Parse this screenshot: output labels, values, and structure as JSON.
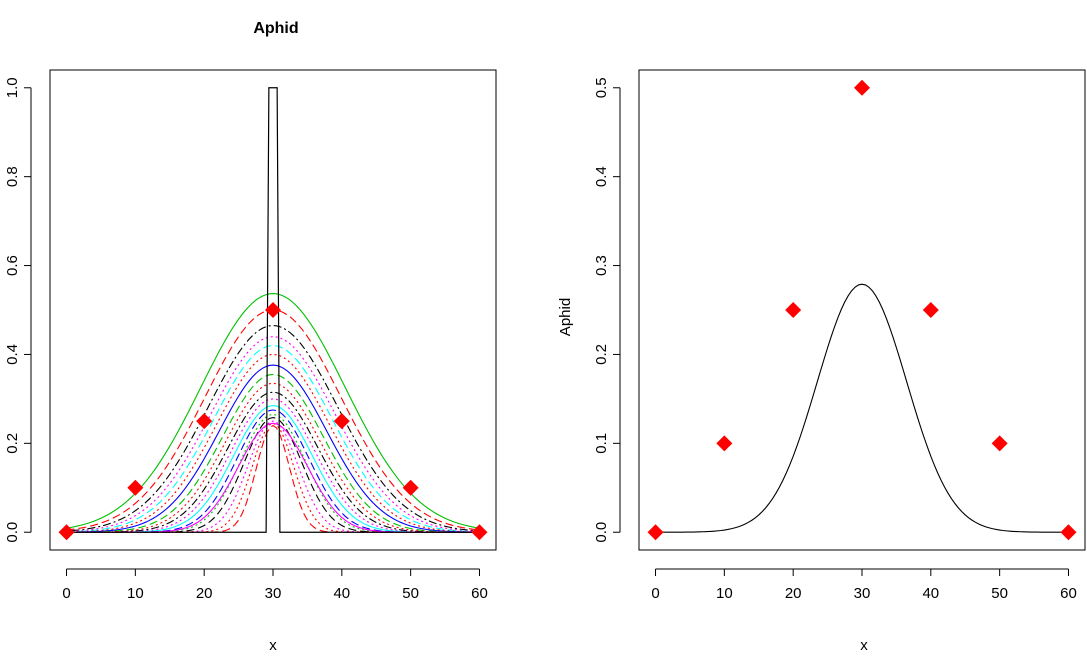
{
  "chart_data": [
    {
      "type": "line",
      "title": "Aphid",
      "xlabel": "x",
      "ylabel": "",
      "xlim": [
        -2.4,
        62.4
      ],
      "ylim": [
        -0.04,
        1.04
      ],
      "x_ticks": [
        0,
        10,
        20,
        30,
        40,
        50,
        60
      ],
      "y_ticks": [
        0.0,
        0.2,
        0.4,
        0.6,
        0.8,
        1.0
      ],
      "x_tick_labels": [
        "0",
        "10",
        "20",
        "30",
        "40",
        "50",
        "60"
      ],
      "y_tick_labels": [
        "0.0",
        "0.2",
        "0.4",
        "0.6",
        "0.8",
        "1.0"
      ],
      "spike": {
        "color": "#000000",
        "x": [
          0,
          29,
          29.4,
          30.6,
          31,
          60
        ],
        "y": [
          0,
          0,
          1.0,
          1.0,
          0,
          0
        ]
      },
      "series": [
        {
          "peak": 0.537,
          "sigma": 10.5,
          "color": "#00C000",
          "dash": "solid"
        },
        {
          "peak": 0.5,
          "sigma": 9.9,
          "color": "#FF0000",
          "dash": "dashed"
        },
        {
          "peak": 0.465,
          "sigma": 9.4,
          "color": "#000000",
          "dash": "dotdash"
        },
        {
          "peak": 0.44,
          "sigma": 9.0,
          "color": "#FF00FF",
          "dash": "dotted"
        },
        {
          "peak": 0.42,
          "sigma": 8.6,
          "color": "#00FFFF",
          "dash": "dashed"
        },
        {
          "peak": 0.4,
          "sigma": 8.2,
          "color": "#FF0000",
          "dash": "dotted"
        },
        {
          "peak": 0.376,
          "sigma": 7.8,
          "color": "#0000FF",
          "dash": "solid"
        },
        {
          "peak": 0.355,
          "sigma": 7.3,
          "color": "#00C000",
          "dash": "dashed"
        },
        {
          "peak": 0.335,
          "sigma": 6.9,
          "color": "#FF0000",
          "dash": "dotted"
        },
        {
          "peak": 0.315,
          "sigma": 6.5,
          "color": "#000000",
          "dash": "dotdash"
        },
        {
          "peak": 0.3,
          "sigma": 6.1,
          "color": "#FF00FF",
          "dash": "dotted"
        },
        {
          "peak": 0.285,
          "sigma": 5.7,
          "color": "#00FFFF",
          "dash": "solid"
        },
        {
          "peak": 0.275,
          "sigma": 5.2,
          "color": "#0000FF",
          "dash": "dashed"
        },
        {
          "peak": 0.265,
          "sigma": 4.7,
          "color": "#00C000",
          "dash": "dotted"
        },
        {
          "peak": 0.258,
          "sigma": 4.2,
          "color": "#000000",
          "dash": "dashed"
        },
        {
          "peak": 0.25,
          "sigma": 3.6,
          "color": "#FF00FF",
          "dash": "dotted"
        },
        {
          "peak": 0.245,
          "sigma": 3.0,
          "color": "#FF0000",
          "dash": "dotted"
        },
        {
          "peak": 0.24,
          "sigma": 2.4,
          "color": "#FF0000",
          "dash": "dashed"
        },
        {
          "peak": 0.245,
          "sigma": 5.0,
          "color": "#FF00FF",
          "dash": "solid"
        }
      ],
      "points": {
        "color": "#FF0000",
        "x": [
          0,
          10,
          20,
          30,
          40,
          50,
          60
        ],
        "y": [
          0.0,
          0.1,
          0.25,
          0.5,
          0.25,
          0.1,
          0.0
        ]
      }
    },
    {
      "type": "line",
      "title": "",
      "xlabel": "x",
      "ylabel": "Aphid",
      "xlim": [
        -2.4,
        62.4
      ],
      "ylim": [
        -0.02,
        0.52
      ],
      "x_ticks": [
        0,
        10,
        20,
        30,
        40,
        50,
        60
      ],
      "y_ticks": [
        0.0,
        0.1,
        0.2,
        0.3,
        0.4,
        0.5
      ],
      "x_tick_labels": [
        "0",
        "10",
        "20",
        "30",
        "40",
        "50",
        "60"
      ],
      "y_tick_labels": [
        "0.0",
        "0.1",
        "0.2",
        "0.3",
        "0.4",
        "0.5"
      ],
      "series": [
        {
          "peak": 0.279,
          "sigma": 6.5,
          "color": "#000000",
          "dash": "solid"
        }
      ],
      "points": {
        "color": "#FF0000",
        "x": [
          0,
          10,
          20,
          30,
          40,
          50,
          60
        ],
        "y": [
          0.0,
          0.1,
          0.25,
          0.5,
          0.25,
          0.1,
          0.0
        ]
      }
    }
  ]
}
